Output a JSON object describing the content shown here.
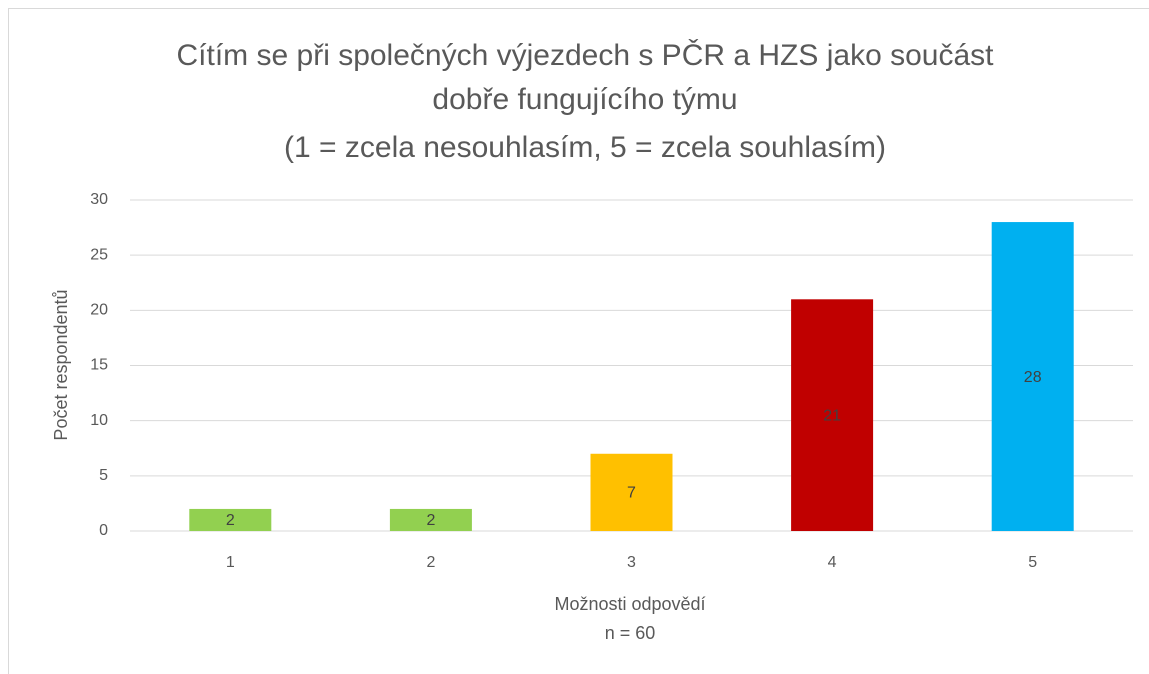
{
  "chart_data": {
    "type": "bar",
    "title": [
      "Cítím se při společných výjezdech s PČR a HZS jako součást",
      "dobře fungujícího týmu"
    ],
    "subtitle": "(1 = zcela nesouhlasím, 5 = zcela souhlasím)",
    "x_label": "Možnosti odpovědí",
    "annotation": "n = 60",
    "y_label": "Počet respondentů",
    "categories": [
      "1",
      "2",
      "3",
      "4",
      "5"
    ],
    "values": [
      2,
      2,
      7,
      21,
      28
    ],
    "colors": [
      "#92d050",
      "#92d050",
      "#ffc000",
      "#c00000",
      "#00b0f0"
    ],
    "ylim": [
      0,
      30
    ],
    "yticks": [
      0,
      5,
      10,
      15,
      20,
      25,
      30
    ],
    "grid": true
  }
}
